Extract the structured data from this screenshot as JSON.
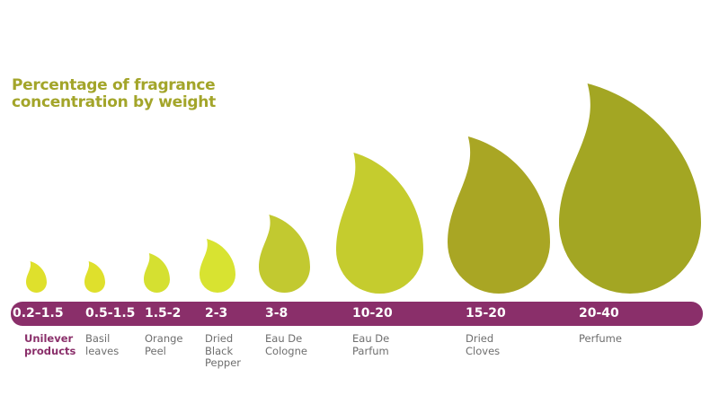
{
  "chart_data": {
    "type": "bar",
    "title": "Percentage of fragrance concentration by weight",
    "categories": [
      "Unilever products",
      "Basil leaves",
      "Orange Peel",
      "Dried Black Pepper",
      "Eau De Cologne",
      "Eau De Parfum",
      "Dried Cloves",
      "Perfume"
    ],
    "range_labels": [
      "0.2–1.5",
      "0.5-1.5",
      "1.5-2",
      "2-3",
      "3-8",
      "10-20",
      "15-20",
      "20-40"
    ],
    "ranges": [
      [
        0.2,
        1.5
      ],
      [
        0.5,
        1.5
      ],
      [
        1.5,
        2
      ],
      [
        2,
        3
      ],
      [
        3,
        8
      ],
      [
        10,
        20
      ],
      [
        15,
        20
      ],
      [
        20,
        40
      ]
    ],
    "mark": "droplet",
    "colors": [
      "#dfe02c",
      "#dfe02c",
      "#d5e031",
      "#d8e331",
      "#c2c930",
      "#c5cc2e",
      "#a9a624",
      "#a3a623"
    ],
    "highlight_color": "#8a2f6a",
    "bar_color": "#8a2f6a",
    "title_color": "#a3a52a"
  }
}
